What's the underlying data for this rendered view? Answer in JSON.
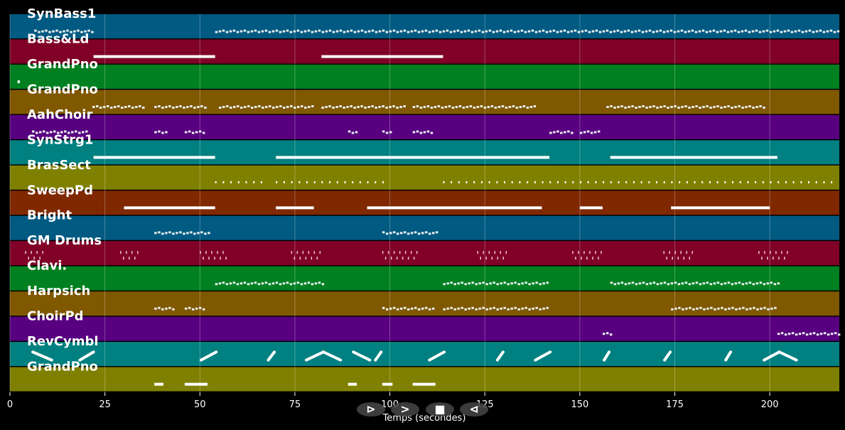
{
  "chart_data": {
    "type": "bar",
    "title": "",
    "xlabel": "Temps (secondes)",
    "xlim": [
      0,
      218.3
    ],
    "xticks": [
      0,
      25,
      50,
      75,
      100,
      125,
      150,
      175,
      200
    ],
    "grid": true,
    "tracks": [
      {
        "name": "SynBass1",
        "color": "#005a82",
        "style": "dash",
        "notes": [
          [
            6.4,
            22
          ],
          [
            54,
            218
          ]
        ]
      },
      {
        "name": "Bass&Ld",
        "color": "#800028",
        "style": "solid",
        "notes": [
          [
            22,
            54
          ],
          [
            82,
            114
          ]
        ]
      },
      {
        "name": "GrandPno",
        "color": "#008020",
        "style": "solid",
        "notes": [
          [
            2,
            2.6
          ]
        ]
      },
      {
        "name": "GrandPno",
        "color": "#805800",
        "style": "dash",
        "notes": [
          [
            21.7,
            35
          ],
          [
            38,
            52
          ],
          [
            55,
            80
          ],
          [
            82,
            104
          ],
          [
            106,
            138
          ],
          [
            157,
            199
          ]
        ]
      },
      {
        "name": "AahChoir",
        "color": "#580080",
        "style": "dash",
        "notes": [
          [
            5.8,
            20
          ],
          [
            38,
            41
          ],
          [
            46,
            51.6
          ],
          [
            89,
            91
          ],
          [
            98,
            100.7
          ],
          [
            106,
            111.5
          ],
          [
            142,
            148
          ],
          [
            150,
            155.6
          ]
        ]
      },
      {
        "name": "SynStrg1",
        "color": "#008080",
        "style": "solid",
        "notes": [
          [
            22,
            54
          ],
          [
            70,
            142
          ],
          [
            158,
            202
          ]
        ]
      },
      {
        "name": "BrasSect",
        "color": "#808000",
        "style": "dots",
        "notes": [
          [
            54,
            68
          ],
          [
            70,
            81.6
          ],
          [
            82,
            100
          ],
          [
            114,
            218
          ]
        ]
      },
      {
        "name": "SweepPd",
        "color": "#802800",
        "style": "solid",
        "notes": [
          [
            30,
            54
          ],
          [
            70,
            80
          ],
          [
            94,
            140
          ],
          [
            150,
            156
          ],
          [
            174,
            200
          ]
        ]
      },
      {
        "name": "Bright",
        "color": "#005a82",
        "style": "dash",
        "notes": [
          [
            38,
            52.6
          ],
          [
            98,
            112.4
          ]
        ]
      },
      {
        "name": "GM Drums",
        "color": "#800028",
        "style": "tick",
        "notes": [
          [
            4,
            9
          ],
          [
            29,
            34
          ],
          [
            50,
            57
          ],
          [
            74,
            82
          ],
          [
            98,
            107
          ],
          [
            123,
            131
          ],
          [
            148,
            156
          ],
          [
            172,
            180
          ],
          [
            197,
            205
          ]
        ]
      },
      {
        "name": "Clavi.",
        "color": "#008020",
        "style": "dash",
        "notes": [
          [
            54,
            82.5
          ],
          [
            114,
            142
          ],
          [
            158,
            202
          ]
        ]
      },
      {
        "name": "Harpsich",
        "color": "#805800",
        "style": "dash",
        "notes": [
          [
            38,
            43
          ],
          [
            46,
            51.6
          ],
          [
            98,
            111.5
          ],
          [
            114,
            142
          ],
          [
            174,
            202
          ]
        ]
      },
      {
        "name": "ChoirPd",
        "color": "#580080",
        "style": "dash",
        "notes": [
          [
            156,
            158
          ],
          [
            202,
            218
          ]
        ]
      },
      {
        "name": "RevCymbl",
        "color": "#008080",
        "style": "slash",
        "notes": [
          [
            6,
            11,
            "d"
          ],
          [
            18.4,
            22,
            "u"
          ],
          [
            50.3,
            54.3,
            "u"
          ],
          [
            68,
            69.6,
            "u"
          ],
          [
            78,
            82.5,
            "u"
          ],
          [
            82.5,
            87,
            "d"
          ],
          [
            90.4,
            94.7,
            "d"
          ],
          [
            96.2,
            97.7,
            "u"
          ],
          [
            110.4,
            114.3,
            "u"
          ],
          [
            128.3,
            129.8,
            "u"
          ],
          [
            138.3,
            142.2,
            "u"
          ],
          [
            156.4,
            157.7,
            "u"
          ],
          [
            172.3,
            173.8,
            "u"
          ],
          [
            188.4,
            189.7,
            "u"
          ],
          [
            198.5,
            202.5,
            "u"
          ],
          [
            202.5,
            207,
            "d"
          ]
        ]
      },
      {
        "name": "GrandPno",
        "color": "#808000",
        "style": "solid",
        "notes": [
          [
            38,
            40.4
          ],
          [
            46,
            52
          ],
          [
            89,
            91.3
          ],
          [
            98,
            100.7
          ],
          [
            106,
            112
          ]
        ]
      }
    ]
  },
  "controls": {
    "play_label": "⊳",
    "forward_label": ">",
    "stop_label": "■",
    "back_label": "⊲"
  }
}
